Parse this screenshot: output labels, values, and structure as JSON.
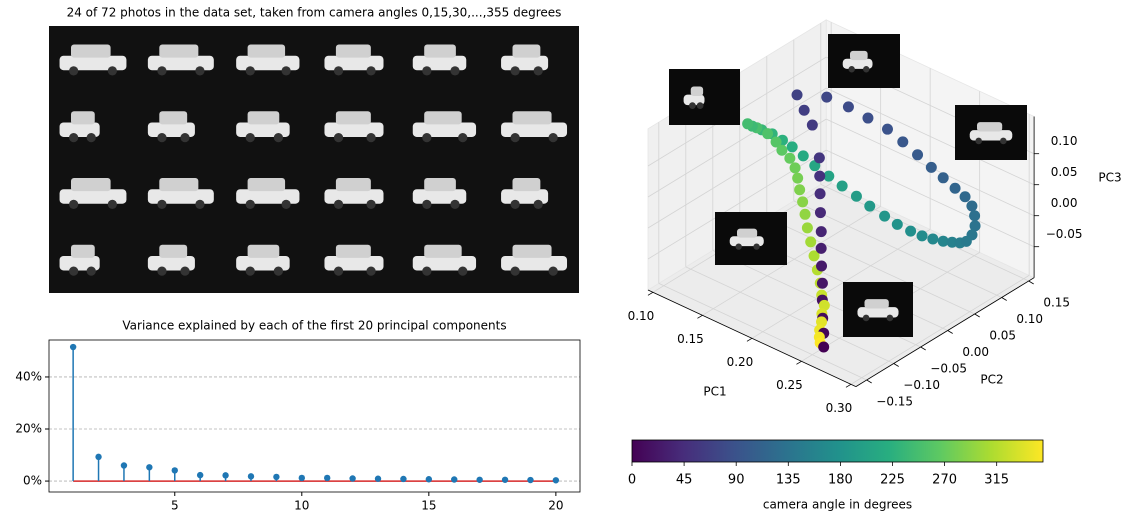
{
  "photo_panel": {
    "title": "24 of 72 photos in the data set, taken from camera angles 0,15,30,...,355 degrees"
  },
  "chart_data": [
    {
      "type": "stem",
      "title": "Variance explained by each of the first 20 principal components",
      "x": [
        1,
        2,
        3,
        4,
        5,
        6,
        7,
        8,
        9,
        10,
        11,
        12,
        13,
        14,
        15,
        16,
        17,
        18,
        19,
        20
      ],
      "values": [
        51.5,
        9.3,
        6.0,
        5.3,
        4.1,
        2.3,
        2.2,
        1.8,
        1.6,
        1.2,
        1.2,
        1.0,
        0.9,
        0.8,
        0.7,
        0.6,
        0.5,
        0.5,
        0.4,
        0.3
      ],
      "xlim": [
        0.05,
        20.95
      ],
      "xticks": [
        5,
        10,
        15,
        20
      ],
      "ylim": [
        -4.2,
        54.2
      ],
      "yticks": [
        {
          "value": 0,
          "label": "0%"
        },
        {
          "value": 20,
          "label": "20%"
        },
        {
          "value": 40,
          "label": "40%"
        }
      ],
      "grid": true,
      "color": "#1f77b4",
      "baseline_color": "#d62728"
    },
    {
      "type": "scatter3d",
      "xlabel": "PC1",
      "ylabel": "PC2",
      "zlabel": "PC3",
      "x": [
        0.261,
        0.255,
        0.248,
        0.24,
        0.233,
        0.225,
        0.217,
        0.21,
        0.201,
        0.193,
        0.185,
        0.177,
        0.159,
        0.148,
        0.137,
        0.155,
        0.172,
        0.189,
        0.206,
        0.222,
        0.238,
        0.253,
        0.265,
        0.277,
        0.286,
        0.294,
        0.3,
        0.301,
        0.299,
        0.296,
        0.288,
        0.28,
        0.271,
        0.26,
        0.248,
        0.237,
        0.223,
        0.208,
        0.193,
        0.179,
        0.164,
        0.15,
        0.138,
        0.128,
        0.119,
        0.113,
        0.107,
        0.103,
        0.1,
        0.098,
        0.103,
        0.11,
        0.118,
        0.125,
        0.133,
        0.141,
        0.148,
        0.156,
        0.165,
        0.174,
        0.184,
        0.195,
        0.206,
        0.217,
        0.227,
        0.235,
        0.242,
        0.245,
        0.249,
        0.252,
        0.255,
        0.258
      ],
      "y": [
        -0.149,
        -0.138,
        -0.127,
        -0.113,
        -0.1,
        -0.087,
        -0.073,
        -0.06,
        -0.045,
        -0.031,
        -0.017,
        -0.003,
        0.017,
        0.022,
        0.029,
        0.051,
        0.06,
        0.065,
        0.07,
        0.069,
        0.067,
        0.065,
        0.065,
        0.065,
        0.067,
        0.065,
        0.059,
        0.058,
        0.056,
        0.051,
        0.054,
        0.054,
        0.054,
        0.055,
        0.057,
        0.056,
        0.057,
        0.061,
        0.061,
        0.062,
        0.063,
        0.064,
        0.06,
        0.057,
        0.053,
        0.046,
        0.038,
        0.026,
        0.014,
        0.009,
        0.017,
        0.024,
        0.025,
        0.023,
        0.023,
        0.018,
        0.01,
        -0.001,
        -0.012,
        -0.024,
        -0.038,
        -0.052,
        -0.066,
        -0.08,
        -0.093,
        -0.105,
        -0.113,
        -0.123,
        -0.131,
        -0.14,
        -0.146,
        -0.15
      ],
      "z": [
        -0.08,
        -0.068,
        -0.055,
        -0.039,
        -0.024,
        -0.009,
        0.006,
        0.021,
        0.037,
        0.054,
        0.069,
        0.085,
        0.114,
        0.127,
        0.14,
        0.138,
        0.13,
        0.122,
        0.114,
        0.106,
        0.098,
        0.09,
        0.082,
        0.074,
        0.066,
        0.058,
        0.05,
        0.035,
        0.02,
        0.01,
        0.0,
        -0.005,
        -0.01,
        -0.015,
        -0.02,
        -0.02,
        -0.02,
        -0.02,
        -0.015,
        -0.01,
        -0.005,
        0.0,
        0.01,
        0.02,
        0.03,
        0.04,
        0.05,
        0.06,
        0.07,
        0.075,
        0.068,
        0.06,
        0.052,
        0.045,
        0.038,
        0.031,
        0.024,
        0.017,
        0.01,
        0.003,
        -0.004,
        -0.011,
        -0.018,
        -0.025,
        -0.032,
        -0.039,
        -0.046,
        -0.052,
        -0.058,
        -0.064,
        -0.07,
        -0.075
      ],
      "color_values": [
        0,
        5,
        10,
        15,
        20,
        25,
        30,
        35,
        40,
        45,
        50,
        55,
        60,
        65,
        70,
        75,
        80,
        85,
        90,
        95,
        100,
        105,
        110,
        115,
        120,
        125,
        130,
        135,
        140,
        145,
        150,
        155,
        160,
        165,
        170,
        175,
        180,
        185,
        190,
        195,
        200,
        205,
        210,
        215,
        220,
        225,
        230,
        235,
        240,
        245,
        250,
        255,
        260,
        265,
        270,
        275,
        280,
        285,
        290,
        295,
        300,
        305,
        310,
        315,
        320,
        325,
        330,
        335,
        340,
        345,
        350,
        355
      ],
      "colormap": "viridis",
      "xlim": [
        0.095,
        0.305
      ],
      "ylim": [
        -0.17,
        0.16
      ],
      "zlim": [
        -0.1,
        0.16
      ],
      "xticks": [
        {
          "value": 0.1,
          "label": "0.10"
        },
        0.15,
        {
          "value": 0.2,
          "label": "0.20"
        },
        0.25,
        {
          "value": 0.3,
          "label": "0.30"
        }
      ],
      "yticks": [
        {
          "value": -0.15,
          "label": "−0.15"
        },
        {
          "value": -0.1,
          "label": "−0.10"
        },
        {
          "value": -0.05,
          "label": "−0.05"
        },
        {
          "value": 0,
          "label": "0.00"
        },
        0.05,
        {
          "value": 0.1,
          "label": "0.10"
        },
        0.15
      ],
      "zticks": [
        {
          "value": -0.05,
          "label": "−0.05"
        },
        {
          "value": 0,
          "label": "0.00"
        },
        0.05,
        {
          "value": 0.1,
          "label": "0.10"
        }
      ],
      "colorbar": {
        "label": "camera angle in degrees",
        "lim": [
          0,
          355
        ],
        "ticks": [
          0,
          45,
          90,
          135,
          180,
          225,
          270,
          315
        ]
      }
    }
  ]
}
